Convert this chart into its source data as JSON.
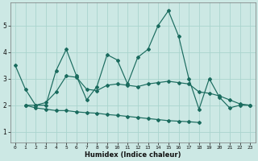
{
  "xlabel": "Humidex (Indice chaleur)",
  "ylabel": "",
  "background_color": "#cce8e4",
  "line_color": "#1a6b5e",
  "grid_color": "#aad4ce",
  "xlim": [
    -0.5,
    23.5
  ],
  "ylim": [
    0.6,
    5.85
  ],
  "xticks": [
    0,
    1,
    2,
    3,
    4,
    5,
    6,
    7,
    8,
    9,
    10,
    11,
    12,
    13,
    14,
    15,
    16,
    17,
    18,
    19,
    20,
    21,
    22,
    23
  ],
  "yticks": [
    1,
    2,
    3,
    4,
    5
  ],
  "series": [
    [
      3.5,
      2.6,
      2.0,
      2.0,
      3.3,
      4.1,
      3.1,
      2.2,
      2.7,
      3.9,
      3.7,
      2.8,
      3.8,
      4.1,
      5.0,
      5.55,
      4.6,
      3.0,
      1.85,
      3.0,
      2.3,
      1.9,
      2.0,
      2.0
    ],
    [
      null,
      2.0,
      2.0,
      2.1,
      2.5,
      3.1,
      3.05,
      2.6,
      2.55,
      2.75,
      2.8,
      2.75,
      2.7,
      2.8,
      2.85,
      2.9,
      2.85,
      2.8,
      2.5,
      2.45,
      2.35,
      2.2,
      2.05,
      2.0
    ],
    [
      null,
      2.0,
      1.9,
      1.85,
      1.8,
      1.8,
      1.75,
      1.72,
      1.7,
      1.65,
      1.62,
      1.58,
      1.54,
      1.5,
      1.46,
      1.42,
      1.4,
      1.38,
      1.35,
      null,
      null,
      null,
      null,
      null
    ]
  ],
  "marker": "D",
  "markersize": 2.0,
  "linewidth": 0.85
}
